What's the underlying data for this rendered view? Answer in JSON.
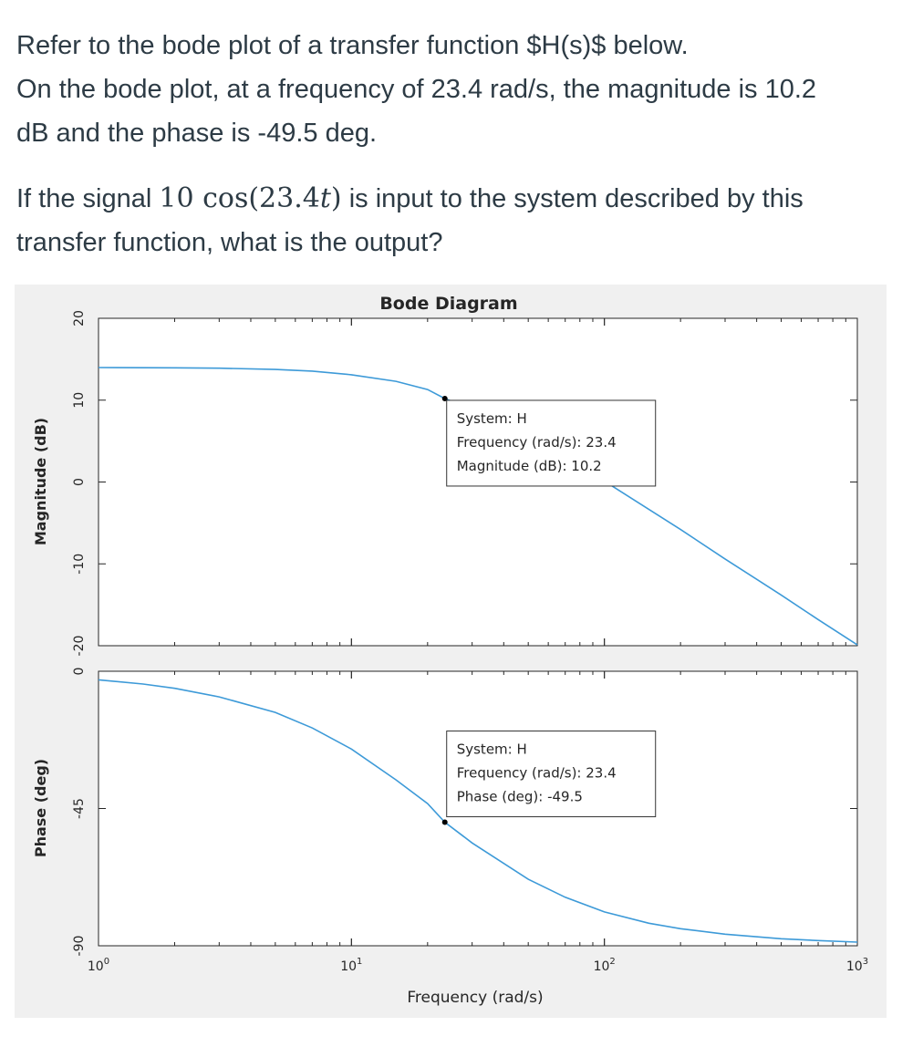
{
  "question": {
    "line1": "Refer to the bode plot of a transfer function $H(s)$ below.",
    "line2": "On the bode plot, at a frequency of 23.4 rad/s, the magnitude is 10.2",
    "line3": "dB and the phase is -49.5 deg.",
    "line4_before": "If the signal ",
    "signal_coef": "10",
    "signal_func": " cos(23.4",
    "signal_var": "t",
    "signal_close": ")",
    "line4_after": " is input to the system described by this",
    "line5": "transfer function, what is the output?"
  },
  "colors": {
    "curve": "#3d9ad8",
    "figure_bg": "#f0f0f0",
    "axes_bg": "#ffffff",
    "text": "#262626"
  },
  "chart_data": {
    "type": "line",
    "title": "Bode Diagram",
    "xlabel": "Frequency (rad/s)",
    "xscale": "log",
    "xlim": [
      1,
      1000
    ],
    "x_ticks": [
      {
        "value": 1,
        "base": "10",
        "exp": "0"
      },
      {
        "value": 10,
        "base": "10",
        "exp": "1"
      },
      {
        "value": 100,
        "base": "10",
        "exp": "2"
      },
      {
        "value": 1000,
        "base": "10",
        "exp": "3"
      }
    ],
    "magnitude": {
      "ylabel": "Magnitude (dB)",
      "ylim": [
        -20,
        20
      ],
      "y_ticks": [
        {
          "value": 20,
          "label": "20"
        },
        {
          "value": 10,
          "label": "10"
        },
        {
          "value": 0,
          "label": "0"
        },
        {
          "value": -10,
          "label": "-10"
        },
        {
          "value": -20,
          "label": "-20"
        }
      ],
      "x": [
        1,
        2,
        3,
        5,
        7,
        10,
        15,
        20,
        23.4,
        30,
        50,
        70,
        100,
        200,
        300,
        500,
        700,
        1000
      ],
      "y": [
        13.98,
        13.95,
        13.9,
        13.75,
        13.55,
        13.1,
        12.3,
        11.3,
        10.2,
        8.9,
        5.4,
        2.9,
        0.1,
        -5.8,
        -9.4,
        -13.8,
        -16.8,
        -19.9
      ],
      "datatip": {
        "x": 23.4,
        "y": 10.2,
        "line1": "System: H",
        "line2": "Frequency (rad/s): 23.4",
        "line3": "Magnitude (dB): 10.2"
      }
    },
    "phase": {
      "ylabel": "Phase (deg)",
      "ylim": [
        -90,
        0
      ],
      "y_ticks": [
        {
          "value": 0,
          "label": "0"
        },
        {
          "value": -45,
          "label": "-45"
        },
        {
          "value": -90,
          "label": "-90"
        }
      ],
      "x": [
        1,
        1.5,
        2,
        3,
        5,
        7,
        10,
        15,
        20,
        23.4,
        30,
        50,
        70,
        100,
        150,
        200,
        300,
        500,
        700,
        1000
      ],
      "y": [
        -2.8,
        -4.2,
        -5.6,
        -8.4,
        -13.5,
        -18.6,
        -25.5,
        -35.6,
        -43.4,
        -49.5,
        -56.3,
        -68.2,
        -74.1,
        -78.9,
        -82.6,
        -84.4,
        -86.2,
        -87.7,
        -88.3,
        -88.8
      ],
      "datatip": {
        "x": 23.4,
        "y": -49.5,
        "line1": "System: H",
        "line2": "Frequency (rad/s): 23.4",
        "line3": "Phase (deg): -49.5"
      }
    }
  }
}
